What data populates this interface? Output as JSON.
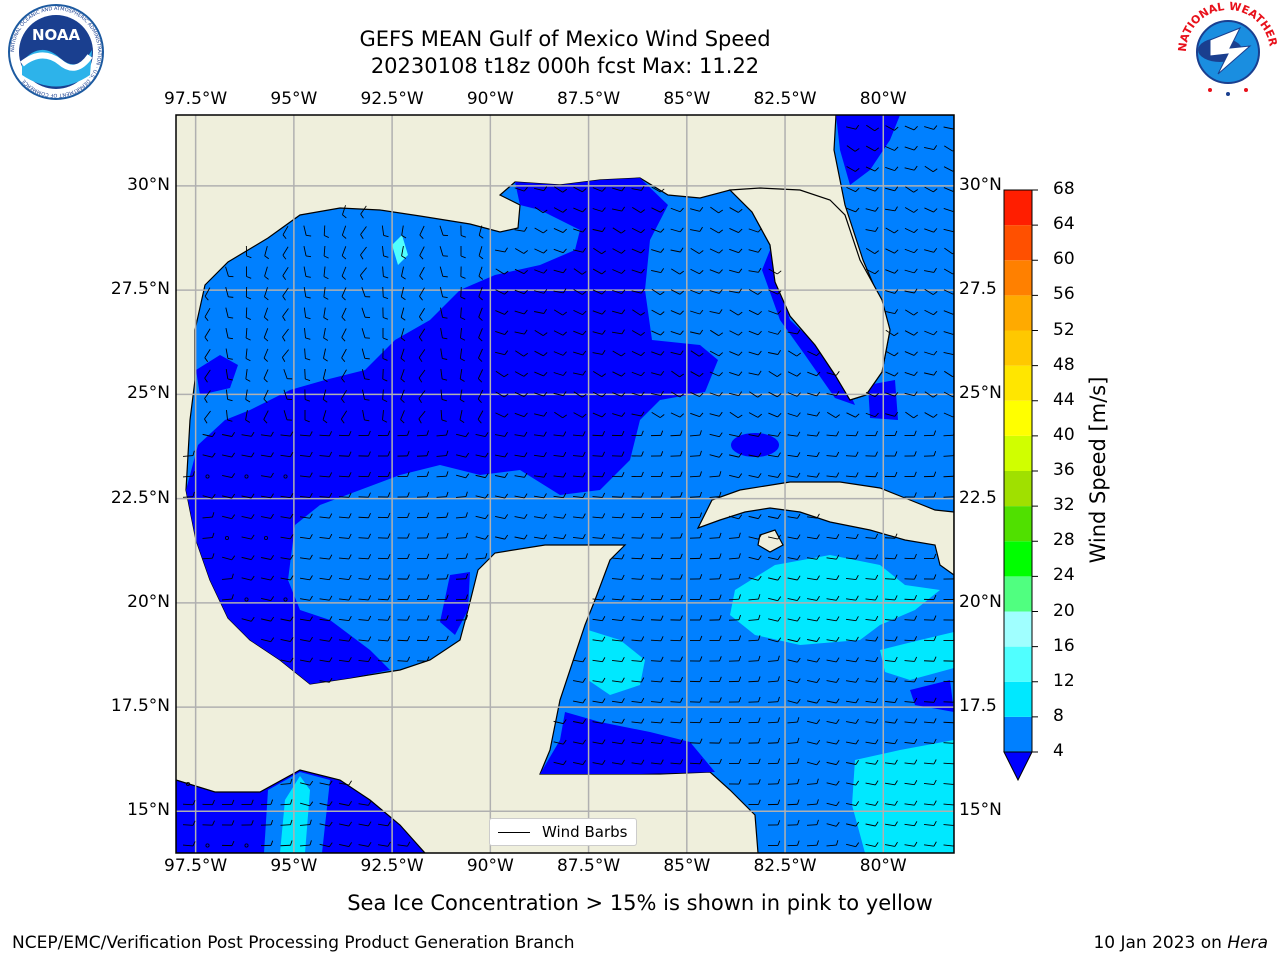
{
  "title_line1": "GEFS MEAN Gulf of Mexico Wind Speed",
  "title_line2": "20230108 t18z 000h fcst   Max: 11.22",
  "lon_labels": [
    "97.5°W",
    "95°W",
    "92.5°W",
    "90°W",
    "87.5°W",
    "85°W",
    "82.5°W",
    "80°W"
  ],
  "lon_values": [
    -97.5,
    -95,
    -92.5,
    -90,
    -87.5,
    -85,
    -82.5,
    -80
  ],
  "lat_labels_left": [
    "30°N",
    "27.5°N",
    "25°N",
    "22.5°N",
    "20°N",
    "17.5°N",
    "15°N"
  ],
  "lat_labels_right": [
    "30°N",
    "27.5",
    "25°N",
    "22.5",
    "20°N",
    "17.5",
    "15°N"
  ],
  "lat_values": [
    30,
    27.5,
    25,
    22.5,
    20,
    17.5,
    15
  ],
  "map_extent": {
    "lon_min": -98,
    "lon_max": -78.2,
    "lat_min": 14,
    "lat_max": 31.7
  },
  "legend_label": "Wind Barbs",
  "colorbar": {
    "title": "Wind Speed [m/s]",
    "ticks": [
      "4",
      "8",
      "12",
      "16",
      "20",
      "24",
      "28",
      "32",
      "36",
      "40",
      "44",
      "48",
      "52",
      "56",
      "60",
      "64",
      "68"
    ],
    "tick_values": [
      4,
      8,
      12,
      16,
      20,
      24,
      28,
      32,
      36,
      40,
      44,
      48,
      52,
      56,
      60,
      64,
      68
    ],
    "under_color": "#0000ff",
    "colors": [
      "#0080ff",
      "#00e8ff",
      "#50ffff",
      "#a0ffff",
      "#50ff80",
      "#00ff00",
      "#50e000",
      "#a0e000",
      "#d0ff00",
      "#ffff00",
      "#ffe600",
      "#ffc800",
      "#ffaa00",
      "#ff8000",
      "#ff5000",
      "#ff1e00"
    ]
  },
  "colors": {
    "land": "#efefdc",
    "gridline": "#b0b0b0",
    "wind_low": "#0000ff",
    "wind_4_8": "#0080ff",
    "wind_8_12": "#00e8ff",
    "wind_12_16": "#50ffff"
  },
  "caption": "Sea Ice Concentration > 15% is shown in pink to yellow",
  "footer_left": "NCEP/EMC/Verification Post Processing Product Generation Branch",
  "footer_right_date": "10 Jan 2023 on ",
  "footer_right_host": "Hera",
  "logos": {
    "left": "NOAA",
    "left_ring_text": "NATIONAL OCEANIC AND ATMOSPHERIC ADMINISTRATION · U.S. DEPARTMENT OF COMMERCE",
    "right_ring_text": "NATIONAL WEATHER SERVICE"
  }
}
